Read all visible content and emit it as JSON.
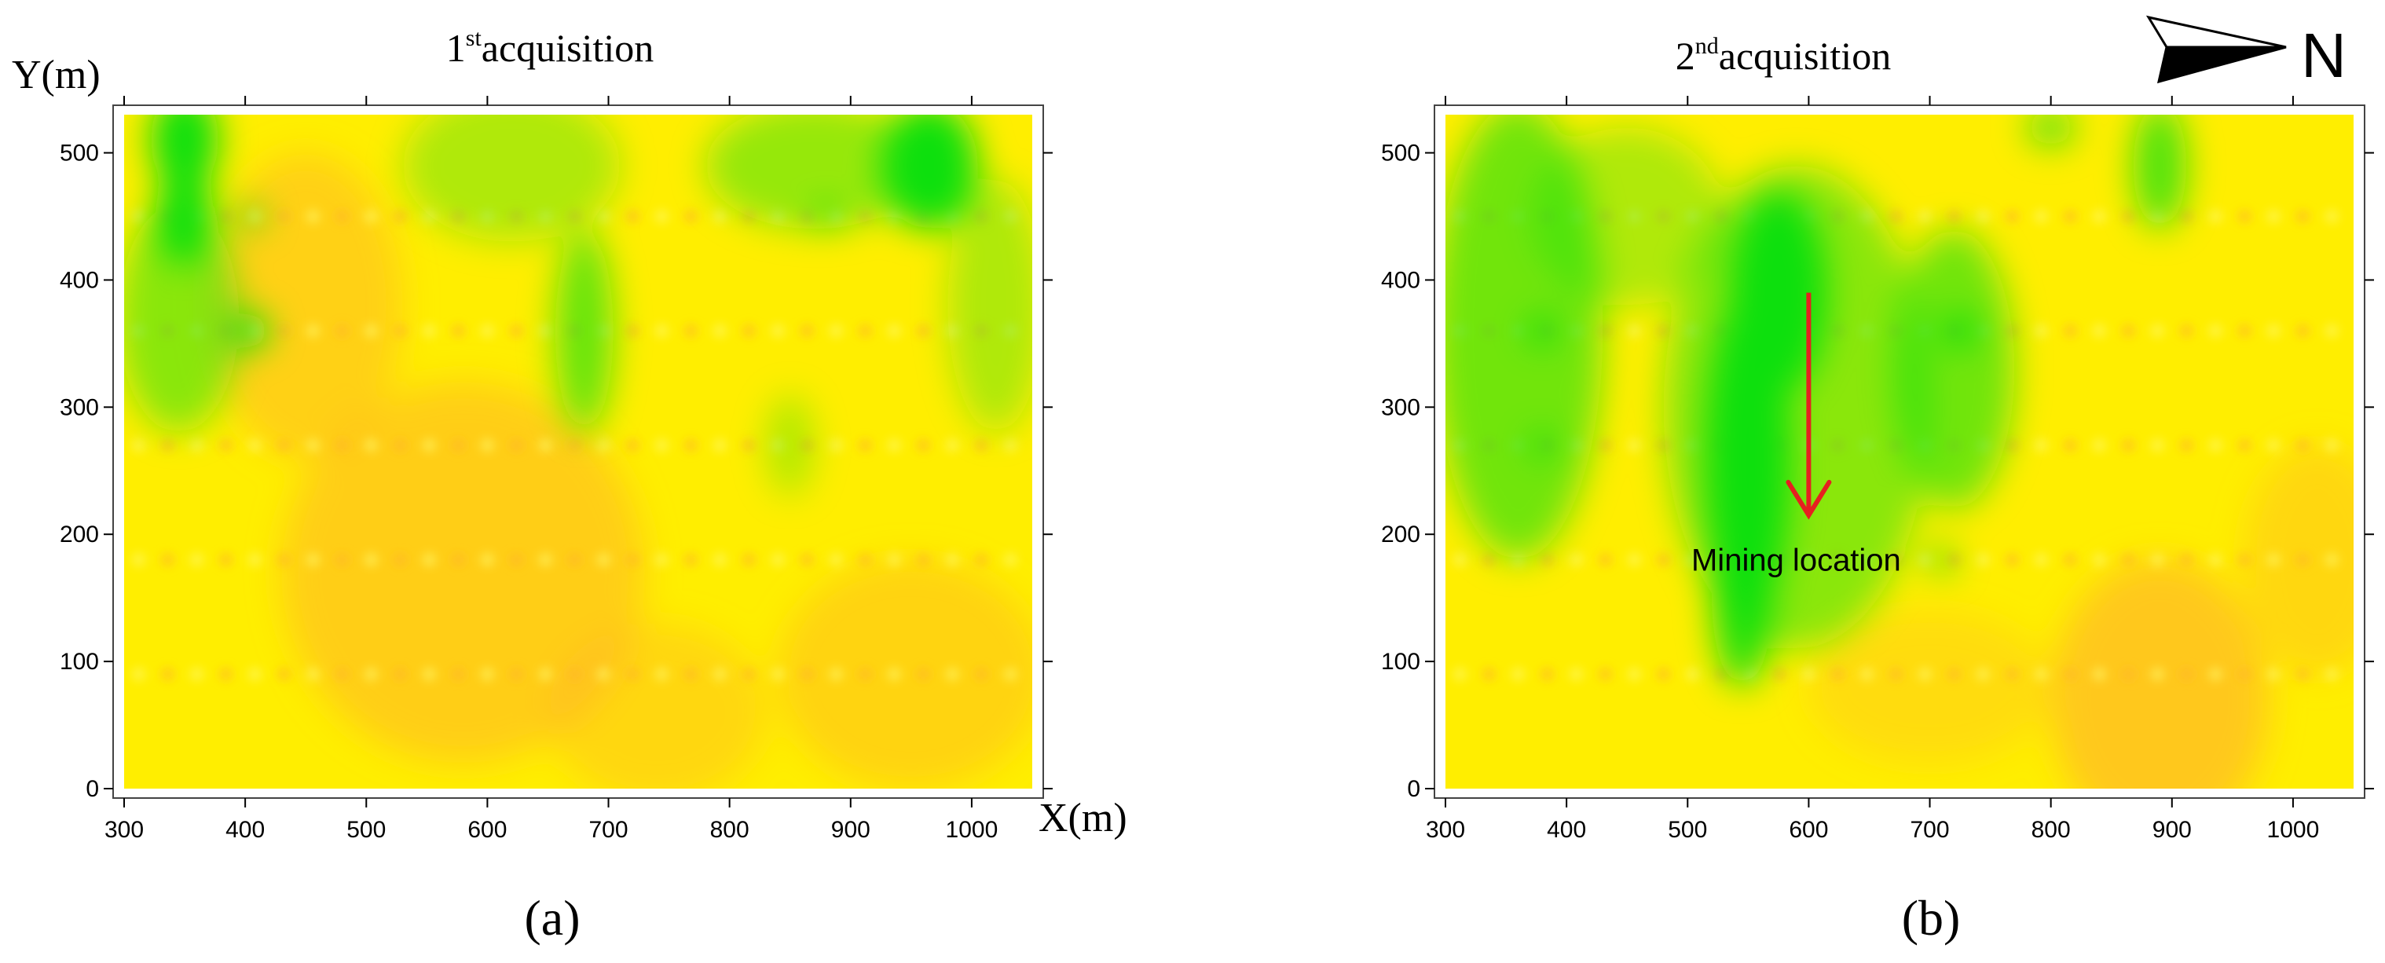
{
  "colors": {
    "yellow": "#ffee00",
    "orange": "#ffb428",
    "green": "#10e010",
    "arrow": "#e62020"
  },
  "north_label": "N",
  "chart_data": [
    {
      "type": "heatmap",
      "panel_label": "(a)",
      "title_main": "1",
      "title_sup": "st",
      "title_rest": "acquisition",
      "ylabel": "Y(m)",
      "xlabel": "X(m)",
      "xlim": [
        300,
        1050
      ],
      "ylim": [
        0,
        530
      ],
      "xticks": [
        300,
        400,
        500,
        600,
        700,
        800,
        900,
        1000
      ],
      "yticks": [
        0,
        100,
        200,
        300,
        400,
        500
      ],
      "profile_lines_y": [
        90,
        180,
        270,
        360,
        450
      ],
      "warm_areas": [
        {
          "x": 450,
          "y": 380,
          "rx": 80,
          "ry": 120,
          "strength": 0.5
        },
        {
          "x": 580,
          "y": 170,
          "rx": 150,
          "ry": 150,
          "strength": 0.55
        },
        {
          "x": 950,
          "y": 90,
          "rx": 110,
          "ry": 90,
          "strength": 0.45
        },
        {
          "x": 740,
          "y": 60,
          "rx": 90,
          "ry": 70,
          "strength": 0.4
        }
      ],
      "green_areas": [
        {
          "x": 350,
          "y": 510,
          "rx": 28,
          "ry": 40,
          "strength": 1.0
        },
        {
          "x": 350,
          "y": 450,
          "rx": 24,
          "ry": 38,
          "strength": 1.0
        },
        {
          "x": 345,
          "y": 370,
          "rx": 50,
          "ry": 90,
          "strength": 0.5
        },
        {
          "x": 405,
          "y": 360,
          "rx": 14,
          "ry": 14,
          "strength": 1.0
        },
        {
          "x": 405,
          "y": 450,
          "rx": 10,
          "ry": 8,
          "strength": 1.0
        },
        {
          "x": 620,
          "y": 490,
          "rx": 90,
          "ry": 60,
          "strength": 0.35
        },
        {
          "x": 680,
          "y": 360,
          "rx": 24,
          "ry": 80,
          "strength": 0.65
        },
        {
          "x": 870,
          "y": 490,
          "rx": 90,
          "ry": 50,
          "strength": 0.45
        },
        {
          "x": 880,
          "y": 450,
          "rx": 12,
          "ry": 8,
          "strength": 0.9
        },
        {
          "x": 965,
          "y": 490,
          "rx": 40,
          "ry": 50,
          "strength": 1.0
        },
        {
          "x": 1020,
          "y": 380,
          "rx": 40,
          "ry": 100,
          "strength": 0.35
        },
        {
          "x": 850,
          "y": 270,
          "rx": 20,
          "ry": 40,
          "strength": 0.3
        }
      ]
    },
    {
      "type": "heatmap",
      "panel_label": "(b)",
      "title_main": "2",
      "title_sup": "nd",
      "title_rest": "acquisition",
      "ylabel": "",
      "xlabel": "",
      "xlim": [
        300,
        1050
      ],
      "ylim": [
        0,
        530
      ],
      "xticks": [
        300,
        400,
        500,
        600,
        700,
        800,
        900,
        1000
      ],
      "yticks": [
        0,
        100,
        200,
        300,
        400,
        500
      ],
      "profile_lines_y": [
        90,
        180,
        270,
        360,
        450
      ],
      "warm_areas": [
        {
          "x": 890,
          "y": 70,
          "rx": 90,
          "ry": 110,
          "strength": 0.65
        },
        {
          "x": 1020,
          "y": 180,
          "rx": 60,
          "ry": 90,
          "strength": 0.4
        },
        {
          "x": 700,
          "y": 80,
          "rx": 100,
          "ry": 60,
          "strength": 0.3
        }
      ],
      "green_areas": [
        {
          "x": 360,
          "y": 360,
          "rx": 70,
          "ry": 180,
          "strength": 0.6
        },
        {
          "x": 380,
          "y": 360,
          "rx": 12,
          "ry": 12,
          "strength": 1.0
        },
        {
          "x": 380,
          "y": 270,
          "rx": 10,
          "ry": 10,
          "strength": 1.0
        },
        {
          "x": 550,
          "y": 260,
          "rx": 35,
          "ry": 130,
          "strength": 1.0
        },
        {
          "x": 575,
          "y": 390,
          "rx": 40,
          "ry": 80,
          "strength": 1.0
        },
        {
          "x": 545,
          "y": 150,
          "rx": 25,
          "ry": 70,
          "strength": 0.9
        },
        {
          "x": 590,
          "y": 300,
          "rx": 110,
          "ry": 190,
          "strength": 0.5
        },
        {
          "x": 720,
          "y": 330,
          "rx": 50,
          "ry": 110,
          "strength": 0.6
        },
        {
          "x": 725,
          "y": 360,
          "rx": 14,
          "ry": 14,
          "strength": 1.0
        },
        {
          "x": 710,
          "y": 180,
          "rx": 10,
          "ry": 10,
          "strength": 0.9
        },
        {
          "x": 890,
          "y": 490,
          "rx": 22,
          "ry": 50,
          "strength": 0.75
        },
        {
          "x": 800,
          "y": 520,
          "rx": 20,
          "ry": 15,
          "strength": 0.7
        },
        {
          "x": 450,
          "y": 450,
          "rx": 80,
          "ry": 70,
          "strength": 0.35
        }
      ],
      "annotation": {
        "text": "Mining location",
        "arrow_from": [
          600,
          390
        ],
        "arrow_to": [
          600,
          215
        ]
      }
    }
  ]
}
